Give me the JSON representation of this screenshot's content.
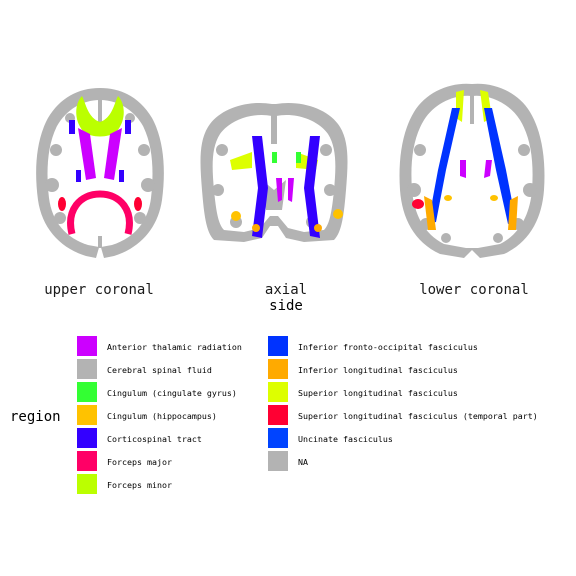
{
  "panels": [
    {
      "label": "upper coronal"
    },
    {
      "label": "axial"
    },
    {
      "label": "lower coronal"
    }
  ],
  "axis_title": "side",
  "legend": {
    "title": "region",
    "items": [
      {
        "label": "Anterior thalamic radiation",
        "color": "#CC00FF"
      },
      {
        "label": "Cerebral spinal fluid",
        "color": "#B3B3B3"
      },
      {
        "label": "Cingulum (cingulate gyrus)",
        "color": "#33FF33"
      },
      {
        "label": "Cingulum (hippocampus)",
        "color": "#FFC200"
      },
      {
        "label": "Corticospinal tract",
        "color": "#3300FF"
      },
      {
        "label": "Forceps major",
        "color": "#FF0066"
      },
      {
        "label": "Forceps minor",
        "color": "#BBFF00"
      },
      {
        "label": "Inferior fronto-occipital fasciculus",
        "color": "#0033FF"
      },
      {
        "label": "Inferior longitudinal fasciculus",
        "color": "#FFAA00"
      },
      {
        "label": "Superior longitudinal fasciculus",
        "color": "#DDFF00"
      },
      {
        "label": "Superior longitudinal fasciculus (temporal part)",
        "color": "#FF0033"
      },
      {
        "label": "Uncinate fasciculus",
        "color": "#0044FF"
      },
      {
        "label": "NA",
        "color": "#B3B3B3"
      }
    ]
  }
}
